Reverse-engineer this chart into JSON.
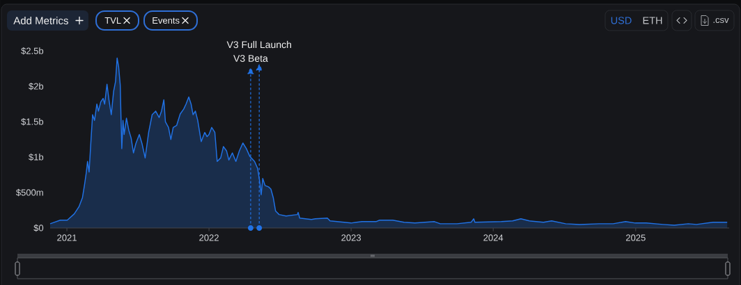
{
  "chart_data": {
    "type": "area",
    "x": [
      "2020-11-19",
      "2020-12-15",
      "2021-01-02",
      "2021-01-20",
      "2021-02-01",
      "2021-02-10",
      "2021-02-15",
      "2021-02-20",
      "2021-02-23",
      "2021-02-27",
      "2021-03-04",
      "2021-03-08",
      "2021-03-13",
      "2021-03-19",
      "2021-03-23",
      "2021-03-29",
      "2021-04-04",
      "2021-04-08",
      "2021-04-14",
      "2021-04-19",
      "2021-04-25",
      "2021-05-01",
      "2021-05-06",
      "2021-05-10",
      "2021-05-14",
      "2021-05-18",
      "2021-05-20",
      "2021-05-22",
      "2021-05-25",
      "2021-05-28",
      "2021-06-03",
      "2021-06-09",
      "2021-06-15",
      "2021-06-21",
      "2021-06-27",
      "2021-07-06",
      "2021-07-13",
      "2021-07-21",
      "2021-07-30",
      "2021-08-08",
      "2021-08-17",
      "2021-08-26",
      "2021-09-01",
      "2021-09-07",
      "2021-09-11",
      "2021-09-19",
      "2021-09-25",
      "2021-10-01",
      "2021-10-10",
      "2021-10-19",
      "2021-10-28",
      "2021-11-03",
      "2021-11-10",
      "2021-11-16",
      "2021-11-21",
      "2021-11-27",
      "2021-12-03",
      "2021-12-08",
      "2021-12-12",
      "2021-12-21",
      "2021-12-27",
      "2022-01-01",
      "2022-01-08",
      "2022-01-16",
      "2022-01-22",
      "2022-01-31",
      "2022-02-07",
      "2022-02-15",
      "2022-02-21",
      "2022-03-02",
      "2022-03-11",
      "2022-03-20",
      "2022-03-29",
      "2022-04-07",
      "2022-04-16",
      "2022-04-28",
      "2022-05-06",
      "2022-05-12",
      "2022-05-15",
      "2022-05-19",
      "2022-05-25",
      "2022-06-03",
      "2022-06-09",
      "2022-06-15",
      "2022-06-21",
      "2022-06-30",
      "2022-07-18",
      "2022-08-16",
      "2022-08-18",
      "2022-08-22",
      "2022-09-21",
      "2022-10-01",
      "2022-11-01",
      "2022-11-08",
      "2022-12-14",
      "2023-01-01",
      "2023-01-29",
      "2023-03-06",
      "2023-03-15",
      "2023-04-18",
      "2023-05-17",
      "2023-06-14",
      "2023-08-03",
      "2023-08-18",
      "2023-09-30",
      "2023-11-05",
      "2023-11-12",
      "2023-11-15",
      "2024-01-22",
      "2024-02-20",
      "2024-03-12",
      "2024-04-03",
      "2024-05-09",
      "2024-05-30",
      "2024-07-05",
      "2024-08-10",
      "2024-09-29",
      "2024-11-04",
      "2024-12-06",
      "2024-12-31",
      "2025-01-28",
      "2025-03-12",
      "2025-04-10",
      "2025-05-16",
      "2025-06-06",
      "2025-07-19",
      "2025-08-24"
    ],
    "series": [
      {
        "color": "#2172e5",
        "values": [
          60000000,
          110000000,
          110000000,
          200000000,
          300000000,
          430000000,
          600000000,
          790000000,
          940000000,
          790000000,
          1250000000,
          1600000000,
          1520000000,
          1750000000,
          1650000000,
          1780000000,
          1830000000,
          1750000000,
          2030000000,
          1810000000,
          1600000000,
          1930000000,
          2070000000,
          2400000000,
          2270000000,
          2020000000,
          1550000000,
          1120000000,
          1520000000,
          1320000000,
          1550000000,
          1380000000,
          1270000000,
          1060000000,
          1190000000,
          1320000000,
          1190000000,
          990000000,
          1350000000,
          1600000000,
          1650000000,
          1560000000,
          1650000000,
          1810000000,
          1500000000,
          1420000000,
          1250000000,
          1420000000,
          1450000000,
          1610000000,
          1680000000,
          1750000000,
          1850000000,
          1750000000,
          1600000000,
          1650000000,
          1520000000,
          1350000000,
          1220000000,
          1350000000,
          1290000000,
          1320000000,
          1420000000,
          1350000000,
          940000000,
          990000000,
          1150000000,
          1090000000,
          960000000,
          1060000000,
          940000000,
          1090000000,
          1200000000,
          1120000000,
          1010000000,
          940000000,
          840000000,
          630000000,
          470000000,
          700000000,
          600000000,
          580000000,
          550000000,
          430000000,
          240000000,
          190000000,
          170000000,
          190000000,
          220000000,
          140000000,
          120000000,
          130000000,
          140000000,
          100000000,
          80000000,
          70000000,
          90000000,
          90000000,
          110000000,
          110000000,
          80000000,
          70000000,
          90000000,
          60000000,
          60000000,
          80000000,
          130000000,
          80000000,
          90000000,
          100000000,
          130000000,
          100000000,
          80000000,
          100000000,
          60000000,
          50000000,
          60000000,
          60000000,
          90000000,
          70000000,
          70000000,
          50000000,
          40000000,
          60000000,
          50000000,
          80000000,
          80000000
        ]
      }
    ],
    "xlim": [
      "2020-11-19",
      "2025-08-29"
    ],
    "xticks": [
      {
        "value": "2021-01-01",
        "label": "2021"
      },
      {
        "value": "2022-01-01",
        "label": "2022"
      },
      {
        "value": "2023-01-01",
        "label": "2023"
      },
      {
        "value": "2024-01-01",
        "label": "2024"
      },
      {
        "value": "2025-01-01",
        "label": "2025"
      }
    ],
    "ylim": [
      0,
      2500000000
    ],
    "yticks": [
      {
        "value": 0,
        "label": "$0"
      },
      {
        "value": 500000000,
        "label": "$500m"
      },
      {
        "value": 1000000000,
        "label": "$1b"
      },
      {
        "value": 1500000000,
        "label": "$1.5b"
      },
      {
        "value": 2000000000,
        "label": "$2b"
      },
      {
        "value": 2500000000,
        "label": "$2.5b"
      }
    ],
    "ref_lines": [
      {
        "axis": "x",
        "value": "2022-04-18",
        "label": "V3 Beta",
        "color": "#2172e5",
        "line_style": "dashed"
      },
      {
        "axis": "x",
        "value": "2022-05-10",
        "label": "V3 Full Launch",
        "color": "#2172e5",
        "line_style": "dashed"
      }
    ],
    "annotations": [
      "Add Metrics",
      "TVL",
      "Events",
      "USD",
      "ETH",
      ".csv"
    ]
  }
}
